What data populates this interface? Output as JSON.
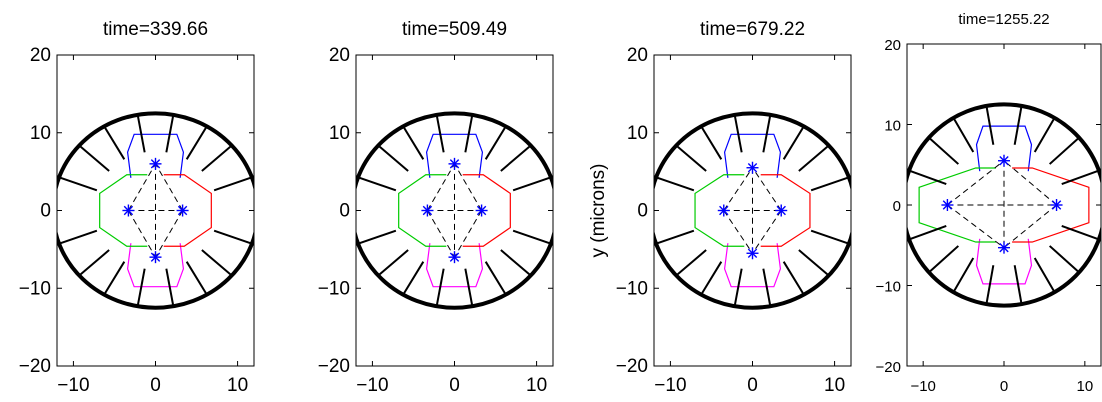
{
  "chart_data": [
    {
      "type": "scatter",
      "title": "time=339.66",
      "xlabel": "",
      "ylabel": "",
      "xlim": [
        -12,
        12
      ],
      "ylim": [
        -20,
        20
      ],
      "xticks": [
        -10,
        0,
        10
      ],
      "yticks": [
        -20,
        -10,
        0,
        10,
        20
      ],
      "xtick_labels": [
        "−10",
        "0",
        "10"
      ],
      "ytick_labels": [
        "−20",
        "−10",
        "0",
        "10",
        "20"
      ],
      "boundary_circle": {
        "cx": 0,
        "cy": 0,
        "r": 12.5
      },
      "centers": [
        {
          "x": 0,
          "y": 6
        },
        {
          "x": -3.3,
          "y": 0
        },
        {
          "x": 3.3,
          "y": 0
        },
        {
          "x": 0,
          "y": -6
        }
      ],
      "cell_colors": {
        "top": "#0000ff",
        "left": "#00cc00",
        "right": "#ff0000",
        "bottom": "#ff00ff"
      },
      "spring_color": "#000000",
      "marker_color": "#0000ff"
    },
    {
      "type": "scatter",
      "title": "time=509.49",
      "xlabel": "",
      "ylabel": "",
      "xlim": [
        -12,
        12
      ],
      "ylim": [
        -20,
        20
      ],
      "xticks": [
        -10,
        0,
        10
      ],
      "yticks": [
        -20,
        -10,
        0,
        10,
        20
      ],
      "xtick_labels": [
        "−10",
        "0",
        "10"
      ],
      "ytick_labels": [
        "−20",
        "−10",
        "0",
        "10",
        "20"
      ],
      "boundary_circle": {
        "cx": 0,
        "cy": 0,
        "r": 12.5
      },
      "centers": [
        {
          "x": 0,
          "y": 6
        },
        {
          "x": -3.3,
          "y": 0
        },
        {
          "x": 3.3,
          "y": 0
        },
        {
          "x": 0,
          "y": -6
        }
      ],
      "cell_colors": {
        "top": "#0000ff",
        "left": "#00cc00",
        "right": "#ff0000",
        "bottom": "#ff00ff"
      },
      "spring_color": "#000000",
      "marker_color": "#0000ff"
    },
    {
      "type": "scatter",
      "title": "time=679.22",
      "xlabel": "",
      "ylabel": "y (microns)",
      "xlim": [
        -12,
        12
      ],
      "ylim": [
        -20,
        20
      ],
      "xticks": [
        -10,
        0,
        10
      ],
      "yticks": [
        -20,
        -10,
        0,
        10,
        20
      ],
      "xtick_labels": [
        "−10",
        "0",
        "10"
      ],
      "ytick_labels": [
        "−20",
        "−10",
        "0",
        "10",
        "20"
      ],
      "boundary_circle": {
        "cx": 0,
        "cy": 0,
        "r": 12.5
      },
      "centers": [
        {
          "x": 0,
          "y": 5.5
        },
        {
          "x": -3.5,
          "y": 0
        },
        {
          "x": 3.5,
          "y": 0
        },
        {
          "x": 0,
          "y": -5.5
        }
      ],
      "cell_colors": {
        "top": "#0000ff",
        "left": "#00cc00",
        "right": "#ff0000",
        "bottom": "#ff00ff"
      },
      "spring_color": "#000000",
      "marker_color": "#0000ff"
    },
    {
      "type": "scatter",
      "title": "time=1255.22",
      "xlabel": "",
      "ylabel": "",
      "xlim": [
        -12,
        12
      ],
      "ylim": [
        -20,
        20
      ],
      "xticks": [
        -10,
        0,
        10
      ],
      "yticks": [
        -20,
        -10,
        0,
        10,
        20
      ],
      "xtick_labels": [
        "−10",
        "0",
        "10"
      ],
      "ytick_labels": [
        "−20",
        "−10",
        "0",
        "10",
        "20"
      ],
      "boundary_circle": {
        "cx": 0,
        "cy": 0,
        "r": 12.5
      },
      "centers": [
        {
          "x": 0,
          "y": 5.5
        },
        {
          "x": -7,
          "y": 0
        },
        {
          "x": 6.5,
          "y": 0
        },
        {
          "x": 0,
          "y": -5.3
        }
      ],
      "cell_colors": {
        "top": "#0000ff",
        "left": "#00cc00",
        "right": "#ff0000",
        "bottom": "#ff00ff"
      },
      "spring_color": "#000000",
      "marker_color": "#0000ff"
    }
  ]
}
